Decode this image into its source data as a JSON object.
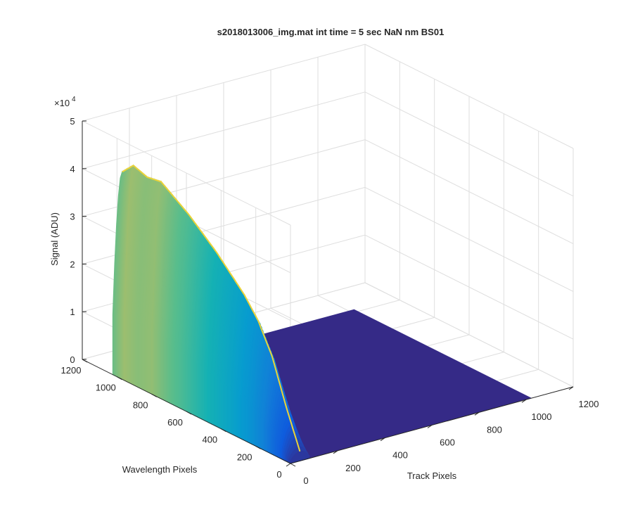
{
  "chart_data": {
    "type": "surface",
    "title": "s2018013006_img.mat int time = 5 sec  NaN nm BS01",
    "xlabel": "Track Pixels",
    "ylabel": "Wavelength Pixels",
    "zlabel": "Signal (ADU)",
    "z_exponent_label": "×10",
    "z_exponent_power": "4",
    "xlim": [
      0,
      1200
    ],
    "ylim": [
      0,
      1200
    ],
    "zlim": [
      0,
      50000
    ],
    "x_ticks": [
      "0",
      "200",
      "400",
      "600",
      "800",
      "1000",
      "1200"
    ],
    "y_ticks": [
      "0",
      "200",
      "400",
      "600",
      "800",
      "1000",
      "1200"
    ],
    "z_ticks": [
      "0",
      "1",
      "2",
      "3",
      "4",
      "5"
    ],
    "grid": true,
    "colormap": "parula",
    "surface_extent": {
      "x": [
        0,
        1024
      ],
      "y": [
        0,
        1024
      ]
    },
    "signal_band": {
      "x_range": [
        0,
        80
      ],
      "wavelength": [
        0,
        80,
        160,
        240,
        320,
        400,
        480,
        560,
        640,
        720,
        800,
        880,
        960,
        1024
      ],
      "peak_signal": [
        2000,
        10000,
        19000,
        25000,
        29000,
        32000,
        35000,
        37500,
        40000,
        42000,
        44000,
        43500,
        44500,
        42000
      ]
    },
    "colors": {
      "low": "#352a87",
      "mid": "#0f5cdd",
      "teal": "#00b4c5",
      "high": "#f9fb0e"
    }
  }
}
